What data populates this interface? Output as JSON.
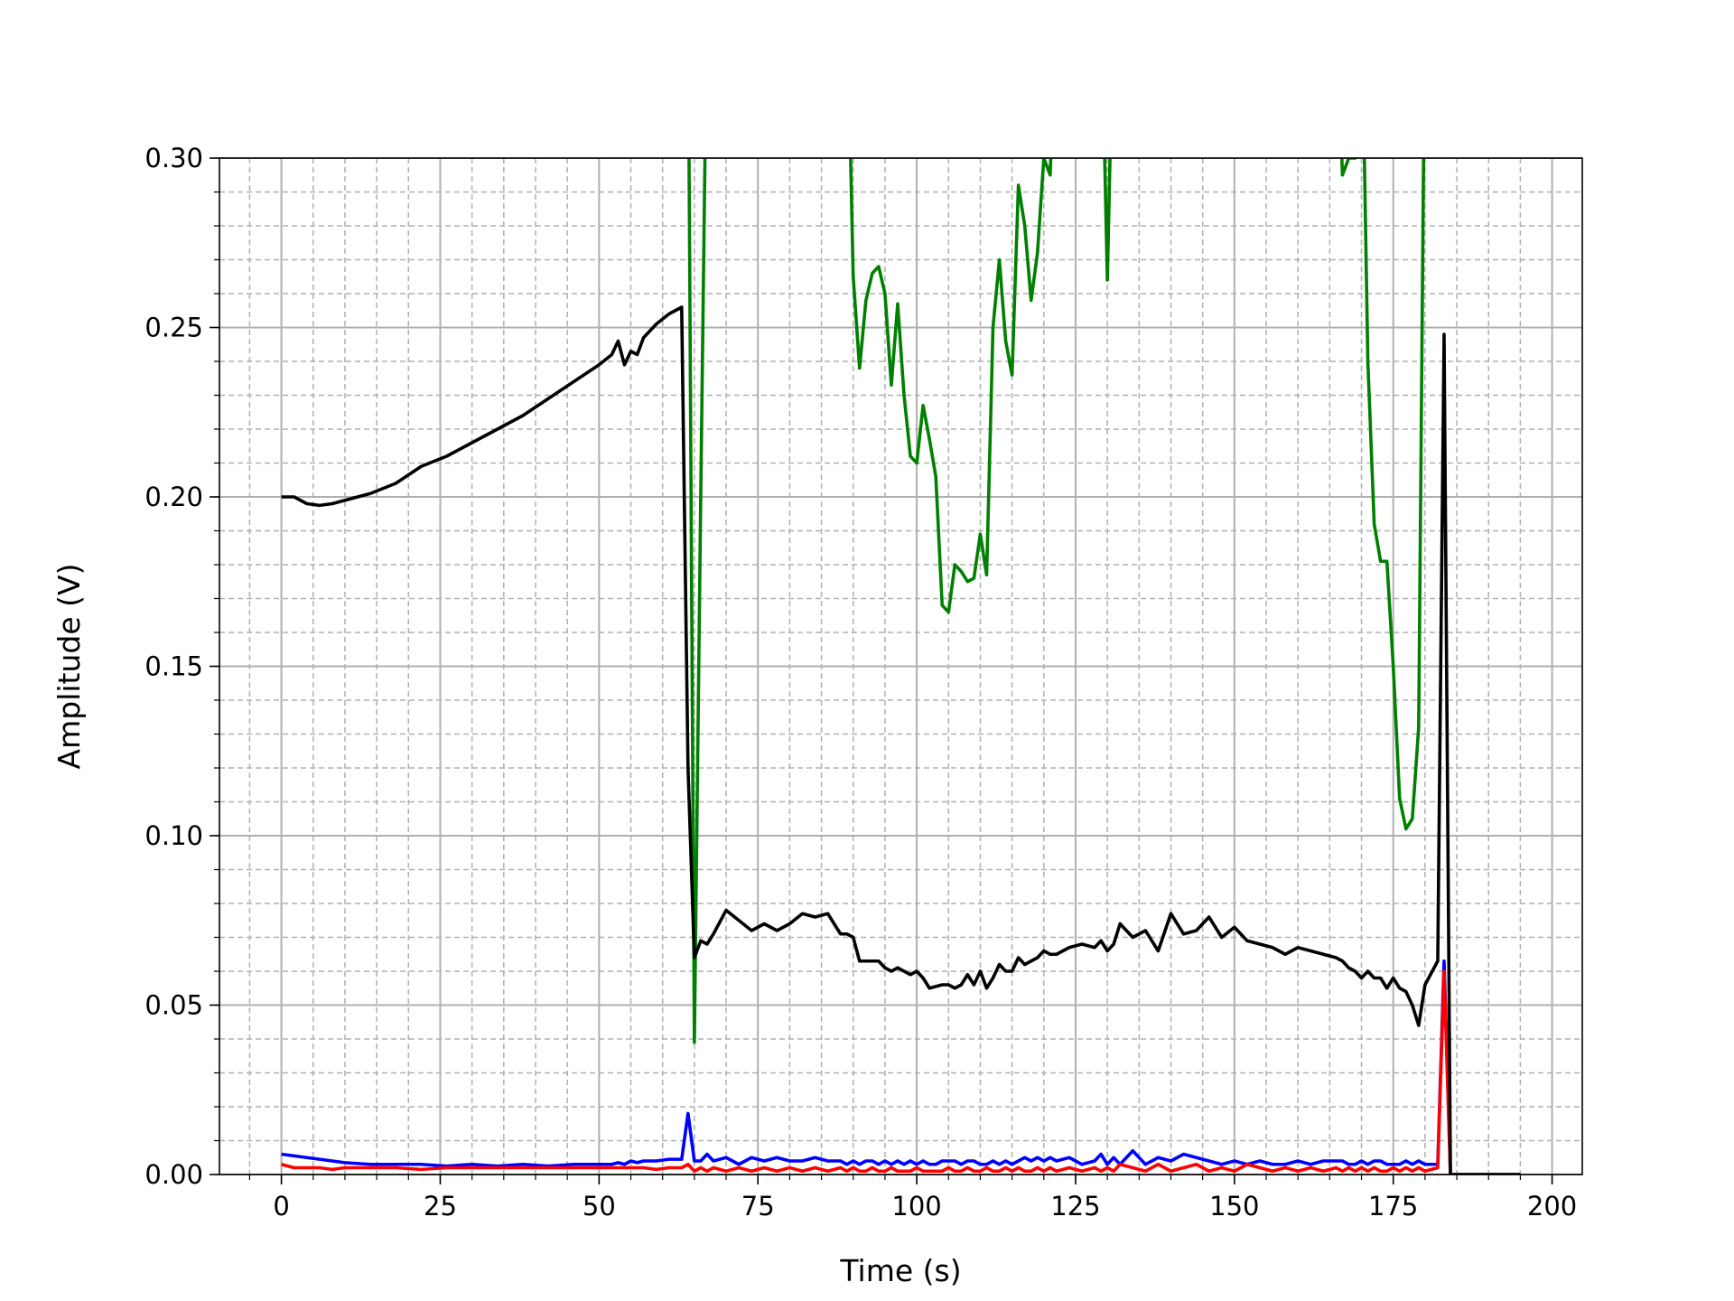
{
  "chart_data": {
    "type": "line",
    "xlabel": "Time (s)",
    "ylabel": "Amplitude (V)",
    "xlim": [
      -9.75,
      204.75
    ],
    "ylim": [
      0,
      0.3
    ],
    "xticks": [
      0,
      25,
      50,
      75,
      100,
      125,
      150,
      175,
      200
    ],
    "yticks": [
      {
        "value": 0,
        "label": "0.00"
      },
      {
        "value": 0.05,
        "label": "0.05"
      },
      {
        "value": 0.1,
        "label": "0.10"
      },
      {
        "value": 0.15,
        "label": "0.15"
      },
      {
        "value": 0.2,
        "label": "0.20"
      },
      {
        "value": 0.25,
        "label": "0.25"
      },
      {
        "value": 0.3,
        "label": "0.30"
      }
    ],
    "xminor": 5,
    "yminor": 0.01,
    "grid": true,
    "minor_grid": true,
    "x": [
      0,
      2,
      4,
      6,
      8,
      10,
      14,
      18,
      22,
      26,
      30,
      34,
      38,
      42,
      46,
      50,
      52,
      53,
      54,
      55,
      56,
      57,
      59,
      61,
      63,
      64,
      65,
      66,
      67,
      68,
      70,
      72,
      74,
      76,
      78,
      80,
      82,
      84,
      86,
      88,
      89,
      90,
      91,
      92,
      93,
      94,
      95,
      96,
      97,
      98,
      99,
      100,
      101,
      102,
      103,
      104,
      105,
      106,
      107,
      108,
      109,
      110,
      111,
      112,
      113,
      114,
      115,
      116,
      117,
      118,
      119,
      120,
      121,
      122,
      124,
      126,
      128,
      129,
      130,
      131,
      132,
      134,
      136,
      138,
      140,
      142,
      144,
      146,
      148,
      150,
      152,
      154,
      156,
      158,
      160,
      162,
      164,
      166,
      167,
      168,
      169,
      170,
      171,
      172,
      173,
      174,
      175,
      176,
      177,
      178,
      179,
      180,
      182,
      183,
      184,
      186,
      190,
      195
    ],
    "series": [
      {
        "color": "#008000",
        "values": [
          null,
          null,
          null,
          null,
          null,
          null,
          null,
          null,
          null,
          null,
          null,
          null,
          null,
          null,
          null,
          null,
          null,
          null,
          null,
          null,
          null,
          null,
          null,
          null,
          null,
          0.35,
          0.039,
          0.2,
          0.35,
          null,
          null,
          null,
          null,
          null,
          null,
          null,
          null,
          null,
          null,
          null,
          0.35,
          0.265,
          0.238,
          0.258,
          0.266,
          0.268,
          0.26,
          0.233,
          0.257,
          0.23,
          0.212,
          0.21,
          0.227,
          0.217,
          0.206,
          0.168,
          0.166,
          0.18,
          0.178,
          0.175,
          0.176,
          0.189,
          0.177,
          0.25,
          0.27,
          0.246,
          0.236,
          0.292,
          0.28,
          0.258,
          0.272,
          0.3,
          0.295,
          0.35,
          null,
          null,
          null,
          0.35,
          0.264,
          0.35,
          null,
          null,
          null,
          null,
          null,
          null,
          null,
          null,
          null,
          null,
          null,
          null,
          null,
          null,
          null,
          null,
          null,
          0.35,
          0.295,
          0.3,
          0.3,
          0.35,
          0.24,
          0.192,
          0.181,
          0.181,
          0.15,
          0.111,
          0.102,
          0.105,
          0.132,
          0.35,
          null,
          null,
          null,
          null,
          null,
          null
        ]
      },
      {
        "color": "#0000ff",
        "values": [
          0.006,
          0.0055,
          0.005,
          0.0045,
          0.004,
          0.0035,
          0.003,
          0.003,
          0.003,
          0.0025,
          0.003,
          0.0025,
          0.003,
          0.0025,
          0.003,
          0.003,
          0.003,
          0.0035,
          0.003,
          0.004,
          0.0035,
          0.004,
          0.004,
          0.0045,
          0.0045,
          0.018,
          0.004,
          0.004,
          0.006,
          0.004,
          0.005,
          0.003,
          0.005,
          0.004,
          0.005,
          0.004,
          0.004,
          0.005,
          0.004,
          0.004,
          0.003,
          0.004,
          0.003,
          0.004,
          0.004,
          0.003,
          0.004,
          0.003,
          0.004,
          0.003,
          0.004,
          0.003,
          0.004,
          0.003,
          0.003,
          0.004,
          0.004,
          0.004,
          0.003,
          0.004,
          0.004,
          0.003,
          0.003,
          0.004,
          0.003,
          0.004,
          0.003,
          0.004,
          0.005,
          0.004,
          0.005,
          0.004,
          0.005,
          0.004,
          0.005,
          0.003,
          0.004,
          0.006,
          0.003,
          0.005,
          0.003,
          0.007,
          0.003,
          0.005,
          0.004,
          0.006,
          0.005,
          0.004,
          0.003,
          0.004,
          0.003,
          0.004,
          0.003,
          0.003,
          0.004,
          0.003,
          0.004,
          0.004,
          0.004,
          0.003,
          0.003,
          0.004,
          0.003,
          0.004,
          0.004,
          0.003,
          0.003,
          0.003,
          0.004,
          0.003,
          0.004,
          0.003,
          0.003,
          0.063,
          0,
          0,
          0,
          0
        ]
      },
      {
        "color": "#ff0000",
        "values": [
          0.003,
          0.002,
          0.002,
          0.002,
          0.0015,
          0.002,
          0.002,
          0.002,
          0.0015,
          0.002,
          0.002,
          0.002,
          0.002,
          0.002,
          0.002,
          0.002,
          0.002,
          0.002,
          0.002,
          0.002,
          0.002,
          0.002,
          0.0015,
          0.002,
          0.002,
          0.003,
          0.001,
          0.002,
          0.001,
          0.002,
          0.001,
          0.002,
          0.001,
          0.002,
          0.001,
          0.002,
          0.001,
          0.002,
          0.001,
          0.002,
          0.001,
          0.002,
          0.001,
          0.001,
          0.002,
          0.001,
          0.001,
          0.002,
          0.001,
          0.001,
          0.001,
          0.002,
          0.001,
          0.001,
          0.001,
          0.001,
          0.002,
          0.001,
          0.001,
          0.002,
          0.001,
          0.001,
          0.002,
          0.001,
          0.001,
          0.002,
          0.001,
          0.002,
          0.001,
          0.001,
          0.002,
          0.001,
          0.002,
          0.001,
          0.002,
          0.001,
          0.002,
          0.001,
          0.002,
          0.001,
          0.003,
          0.002,
          0.001,
          0.003,
          0.001,
          0.002,
          0.003,
          0.001,
          0.002,
          0.001,
          0.003,
          0.002,
          0.001,
          0.002,
          0.001,
          0.002,
          0.001,
          0.002,
          0.001,
          0.002,
          0.001,
          0.002,
          0.001,
          0.002,
          0.001,
          0.001,
          0.002,
          0.001,
          0.002,
          0.001,
          0.002,
          0.001,
          0.002,
          0.06,
          0,
          0,
          0,
          0
        ]
      },
      {
        "color": "#000000",
        "values": [
          0.2,
          0.2,
          0.198,
          0.1975,
          0.198,
          0.199,
          0.201,
          0.204,
          0.209,
          0.212,
          0.216,
          0.22,
          0.224,
          0.229,
          0.234,
          0.239,
          0.242,
          0.246,
          0.239,
          0.243,
          0.242,
          0.247,
          0.251,
          0.254,
          0.256,
          0.12,
          0.064,
          0.069,
          0.068,
          0.071,
          0.078,
          0.075,
          0.072,
          0.074,
          0.072,
          0.074,
          0.077,
          0.076,
          0.077,
          0.071,
          0.071,
          0.07,
          0.063,
          0.063,
          0.063,
          0.063,
          0.061,
          0.06,
          0.061,
          0.06,
          0.059,
          0.06,
          0.058,
          0.055,
          0.0555,
          0.056,
          0.056,
          0.055,
          0.056,
          0.059,
          0.056,
          0.06,
          0.055,
          0.058,
          0.062,
          0.06,
          0.06,
          0.064,
          0.062,
          0.063,
          0.064,
          0.066,
          0.065,
          0.065,
          0.067,
          0.068,
          0.067,
          0.069,
          0.066,
          0.068,
          0.074,
          0.07,
          0.072,
          0.066,
          0.077,
          0.071,
          0.072,
          0.076,
          0.07,
          0.073,
          0.069,
          0.068,
          0.067,
          0.065,
          0.067,
          0.066,
          0.065,
          0.064,
          0.063,
          0.061,
          0.06,
          0.058,
          0.06,
          0.058,
          0.058,
          0.055,
          0.058,
          0.055,
          0.054,
          0.05,
          0.044,
          0.056,
          0.063,
          0.248,
          0,
          0,
          0,
          0
        ]
      }
    ]
  }
}
